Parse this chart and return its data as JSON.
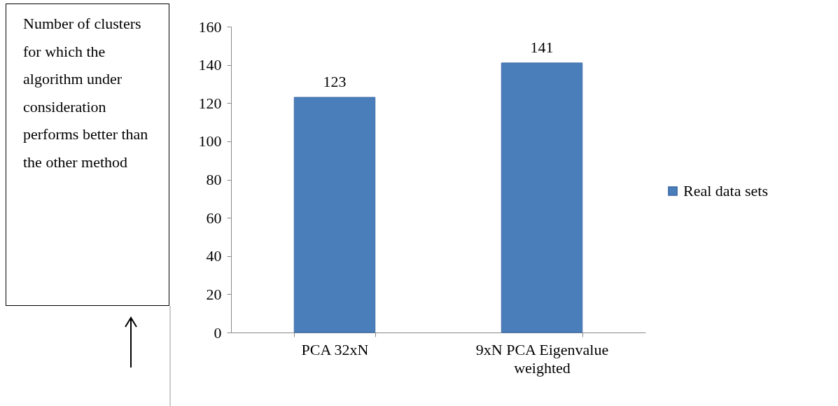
{
  "chart_data": {
    "type": "bar",
    "ylabel": "Number of clusters for which the algorithm under consideration performs better than the other method",
    "categories": [
      "PCA 32xN",
      "9xN PCA Eigenvalue weighted"
    ],
    "series": [
      {
        "name": "Real data sets",
        "color": "#4a7ebb",
        "values": [
          123,
          141
        ]
      }
    ],
    "ylim": [
      0,
      160
    ],
    "yticks": [
      0,
      20,
      40,
      60,
      80,
      100,
      120,
      140,
      160
    ],
    "data_labels": true,
    "legend": "right",
    "grid": false
  }
}
